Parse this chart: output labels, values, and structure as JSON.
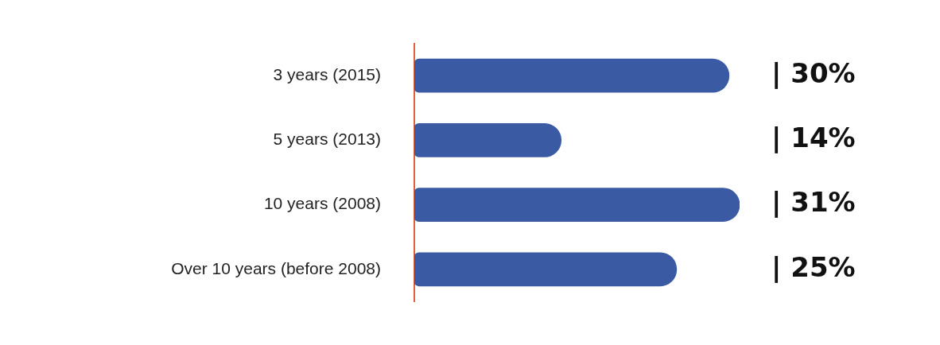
{
  "chart_data": {
    "type": "bar",
    "orientation": "horizontal",
    "categories": [
      "3 years (2015)",
      "5 years (2013)",
      "10 years (2008)",
      "Over 10 years (before 2008)"
    ],
    "values": [
      30,
      14,
      31,
      25
    ],
    "value_labels": [
      "| 30%",
      "| 14%",
      "| 31%",
      "| 25%"
    ],
    "color": "#3a5aa3"
  }
}
